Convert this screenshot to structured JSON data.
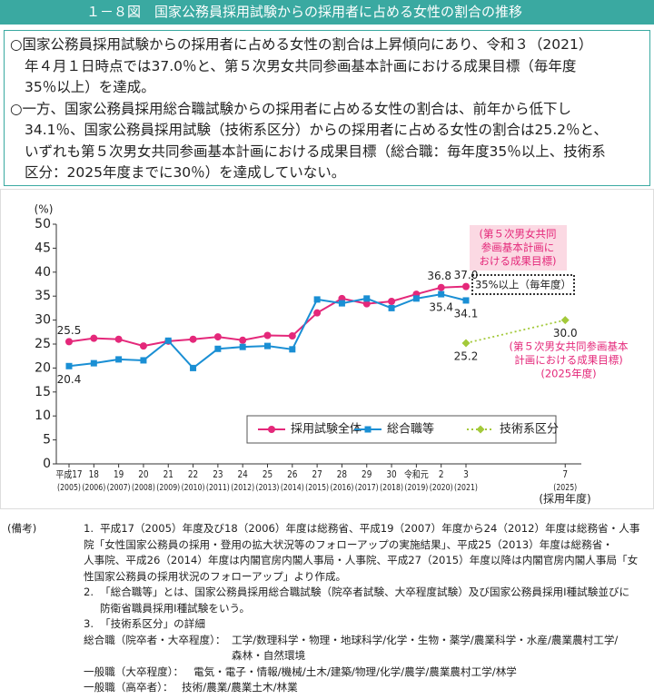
{
  "header": {
    "title": "１－８図　国家公務員採用試験からの採用者に占める女性の割合の推移"
  },
  "summary": [
    [
      "○国家公務員採用試験からの採用者に占める女性の割合は上昇傾向にあり、令和３（2021）",
      "年４月１日時点では37.0％と、第５次男女共同参画基本計画における成果目標（毎年度",
      "35％以上）を達成。"
    ],
    [
      "○一方、国家公務員採用総合職試験からの採用者に占める女性の割合は、前年から低下し",
      "34.1％、国家公務員採用試験（技術系区分）からの採用者に占める女性の割合は25.2％と、",
      "いずれも第５次男女共同参画基本計画における成果目標（総合職：毎年度35％以上、技術系",
      "区分：2025年度までに30％）を達成していない。"
    ]
  ],
  "chart_data": {
    "type": "line",
    "y_label": "(%)",
    "x_label": "(採用年度)",
    "x": [
      2005,
      2006,
      2007,
      2008,
      2009,
      2010,
      2011,
      2012,
      2013,
      2014,
      2015,
      2016,
      2017,
      2018,
      2019,
      2020,
      2021,
      2025
    ],
    "xlim": [
      2004.5,
      2025.7
    ],
    "xticks": [
      {
        "value": 2005,
        "label": "平成17"
      },
      {
        "value": 2006,
        "label": "18"
      },
      {
        "value": 2007,
        "label": "19"
      },
      {
        "value": 2008,
        "label": "20"
      },
      {
        "value": 2009,
        "label": "21"
      },
      {
        "value": 2010,
        "label": "22"
      },
      {
        "value": 2011,
        "label": "23"
      },
      {
        "value": 2012,
        "label": "24"
      },
      {
        "value": 2013,
        "label": "25"
      },
      {
        "value": 2014,
        "label": "26"
      },
      {
        "value": 2015,
        "label": "27"
      },
      {
        "value": 2016,
        "label": "28"
      },
      {
        "value": 2017,
        "label": "29"
      },
      {
        "value": 2018,
        "label": "30"
      },
      {
        "value": 2019,
        "label": "令和元"
      },
      {
        "value": 2020,
        "label": "2"
      },
      {
        "value": 2021,
        "label": "3"
      },
      {
        "value": 2025,
        "label": "7"
      }
    ],
    "xtick_years": [
      "(2005)",
      "(2006)",
      "(2007)",
      "(2008)",
      "(2009)",
      "(2010)",
      "(2011)",
      "(2012)",
      "(2013)",
      "(2014)",
      "(2015)",
      "(2016)",
      "(2017)",
      "(2018)",
      "(2019)",
      "(2020)",
      "(2021)",
      "(2025)"
    ],
    "ylim": [
      0,
      50
    ],
    "yticks": [
      0,
      5,
      10,
      15,
      20,
      25,
      30,
      35,
      40,
      45,
      50
    ],
    "series": [
      {
        "name": "採用試験全体",
        "color": "#e4287a",
        "marker": "circle",
        "dash": false,
        "values": [
          25.5,
          26.2,
          26.0,
          24.6,
          25.6,
          26.0,
          26.5,
          25.8,
          26.8,
          26.7,
          31.5,
          34.5,
          33.4,
          33.9,
          35.4,
          36.8,
          37.0,
          null
        ],
        "value_labels": [
          "25.5",
          null,
          null,
          null,
          null,
          null,
          null,
          null,
          null,
          null,
          null,
          null,
          null,
          null,
          null,
          "36.8",
          "37.0",
          null
        ]
      },
      {
        "name": "総合職等",
        "color": "#1a8fd4",
        "marker": "square",
        "dash": false,
        "values": [
          20.4,
          21.0,
          21.8,
          21.6,
          25.7,
          20.0,
          24.0,
          24.4,
          24.6,
          23.9,
          34.3,
          33.5,
          34.5,
          32.5,
          34.5,
          35.4,
          34.1,
          null
        ],
        "value_labels": [
          "20.4",
          null,
          null,
          null,
          null,
          null,
          null,
          null,
          null,
          null,
          null,
          null,
          null,
          null,
          null,
          "35.4",
          "34.1",
          null
        ]
      },
      {
        "name": "技術系区分",
        "color": "#a3c93a",
        "marker": "diamond",
        "dash": true,
        "values": [
          null,
          null,
          null,
          null,
          null,
          null,
          null,
          null,
          null,
          null,
          null,
          null,
          null,
          null,
          null,
          null,
          25.2,
          30.0
        ],
        "value_labels": [
          null,
          null,
          null,
          null,
          null,
          null,
          null,
          null,
          null,
          null,
          null,
          null,
          null,
          null,
          null,
          null,
          "25.2",
          "30.0"
        ]
      }
    ],
    "target_note": [
      "(第５次男女共同",
      "参画基本計画に",
      "おける成果目標)"
    ],
    "target_box": "35%以上（毎年度）",
    "tech_note": [
      "(第５次男女共同参画基本",
      "計画における成果目標)",
      "(2025年度)"
    ],
    "legend": "bottom-right"
  },
  "notes": {
    "label": "(備考)",
    "items": [
      {
        "number": "1.",
        "lines": [
          "平成17（2005）年度及び18（2006）年度は総務省、平成19（2007）年度から24（2012）年度は総務省・人事",
          "院「女性国家公務員の採用・登用の拡大状況等のフォローアップの実施結果」、平成25（2013）年度は総務省・",
          "人事院、平成26（2014）年度は内閣官房内閣人事局・人事院、平成27（2015）年度以降は内閣官房内閣人事局「女",
          "性国家公務員の採用状況のフォローアップ」より作成。"
        ]
      },
      {
        "number": "2.",
        "lines": [
          "「総合職等」とは、国家公務員採用総合職試験（院卒者試験、大卒程度試験）及び国家公務員採用Ⅰ種試験並びに",
          "防衛省職員採用Ⅰ種試験をいう。"
        ]
      },
      {
        "number": "3.",
        "lines": [
          "「技術系区分」の詳細"
        ]
      }
    ],
    "details": [
      {
        "term": "総合職（院卒者・大卒程度）：",
        "lines": [
          "工学/数理科学・物理・地球科学/化学・生物・薬学/農業科学・水産/農業農村工学/",
          "森林・自然環境"
        ]
      },
      {
        "term": "一般職（大卒程度）：",
        "lines": [
          "電気・電子・情報/機械/土木/建築/物理/化学/農学/農業農村工学/林学"
        ]
      },
      {
        "term": "一般職（高卒者）：",
        "lines": [
          "技術/農業/農業土木/林業"
        ]
      }
    ]
  }
}
